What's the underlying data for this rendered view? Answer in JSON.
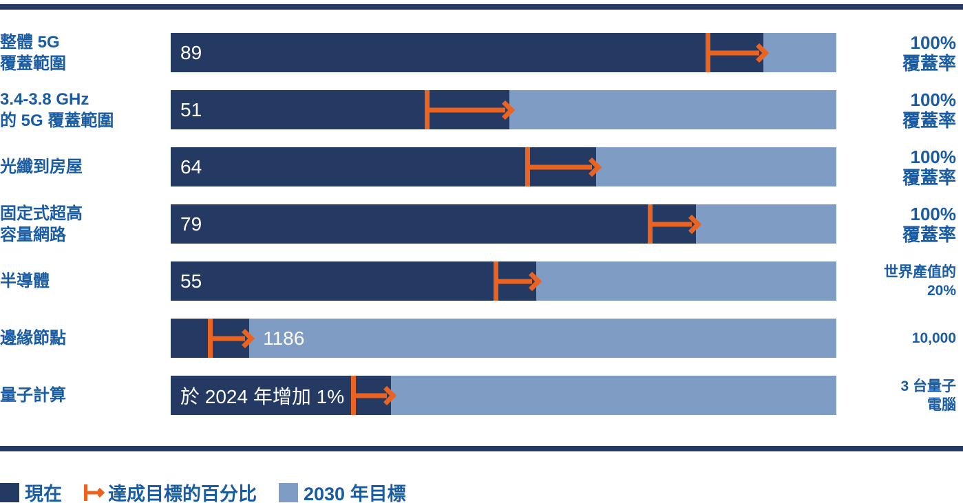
{
  "chart_data": {
    "type": "bar",
    "orientation": "horizontal",
    "axis_range_pct": [
      0,
      100
    ],
    "rows": [
      {
        "label_lines": [
          "整體 5G",
          "覆蓋範圍"
        ],
        "now": 89,
        "bar": {
          "value_text": "89",
          "dark_pct": 89.0,
          "arrow_start_pct": 80.4,
          "value_position": "dark"
        },
        "target_lines": [
          "100%",
          "覆蓋率"
        ],
        "target_text": "100% 覆蓋率",
        "target_small": false
      },
      {
        "label_lines": [
          "3.4-3.8 GHz",
          "的 5G 覆蓋範圍"
        ],
        "now": 51,
        "bar": {
          "value_text": "51",
          "dark_pct": 50.9,
          "arrow_start_pct": 38.2,
          "value_position": "dark"
        },
        "target_lines": [
          "100%",
          "覆蓋率"
        ],
        "target_text": "100% 覆蓋率",
        "target_small": false
      },
      {
        "label_lines": [
          "光纖到房屋"
        ],
        "now": 64,
        "bar": {
          "value_text": "64",
          "dark_pct": 63.9,
          "arrow_start_pct": 53.3,
          "value_position": "dark"
        },
        "target_lines": [
          "100%",
          "覆蓋率"
        ],
        "target_text": "100% 覆蓋率",
        "target_small": false
      },
      {
        "label_lines": [
          "固定式超高",
          "容量網路"
        ],
        "now": 79,
        "bar": {
          "value_text": "79",
          "dark_pct": 78.9,
          "arrow_start_pct": 71.7,
          "value_position": "dark"
        },
        "target_lines": [
          "100%",
          "覆蓋率"
        ],
        "target_text": "100% 覆蓋率",
        "target_small": false
      },
      {
        "label_lines": [
          "半導體"
        ],
        "now": 55,
        "bar": {
          "value_text": "55",
          "dark_pct": 54.9,
          "arrow_start_pct": 48.5,
          "value_position": "dark"
        },
        "target_lines": [
          "世界產值的",
          "20%"
        ],
        "target_text": "世界產值的 20%",
        "target_small": true
      },
      {
        "label_lines": [
          "邊緣節點"
        ],
        "now": 1186,
        "bar": {
          "value_text": "1186",
          "dark_pct": 11.8,
          "arrow_start_pct": 5.6,
          "value_position": "light"
        },
        "target_lines": [
          "10,000"
        ],
        "target_text": "10,000",
        "target_small": true
      },
      {
        "label_lines": [
          "量子計算"
        ],
        "now_text": "於 2024 年增加 1%",
        "bar": {
          "value_text": "於 2024 年增加 1%",
          "dark_pct": 33.1,
          "arrow_start_pct": 27.1,
          "value_position": "dark"
        },
        "target_lines": [
          "3 台量子",
          "電腦"
        ],
        "target_text": "3 台量子電腦",
        "target_small": true
      }
    ]
  },
  "legend": {
    "now_label": "現在",
    "arrow_label": "達成目標的百分比",
    "target_label": "2030 年目標"
  },
  "colors": {
    "navy": "#243A62",
    "light_blue": "#7E9CC4",
    "orange": "#EB6320",
    "label_blue": "#1A5CA4",
    "bar_text": "#FFFFFF"
  }
}
